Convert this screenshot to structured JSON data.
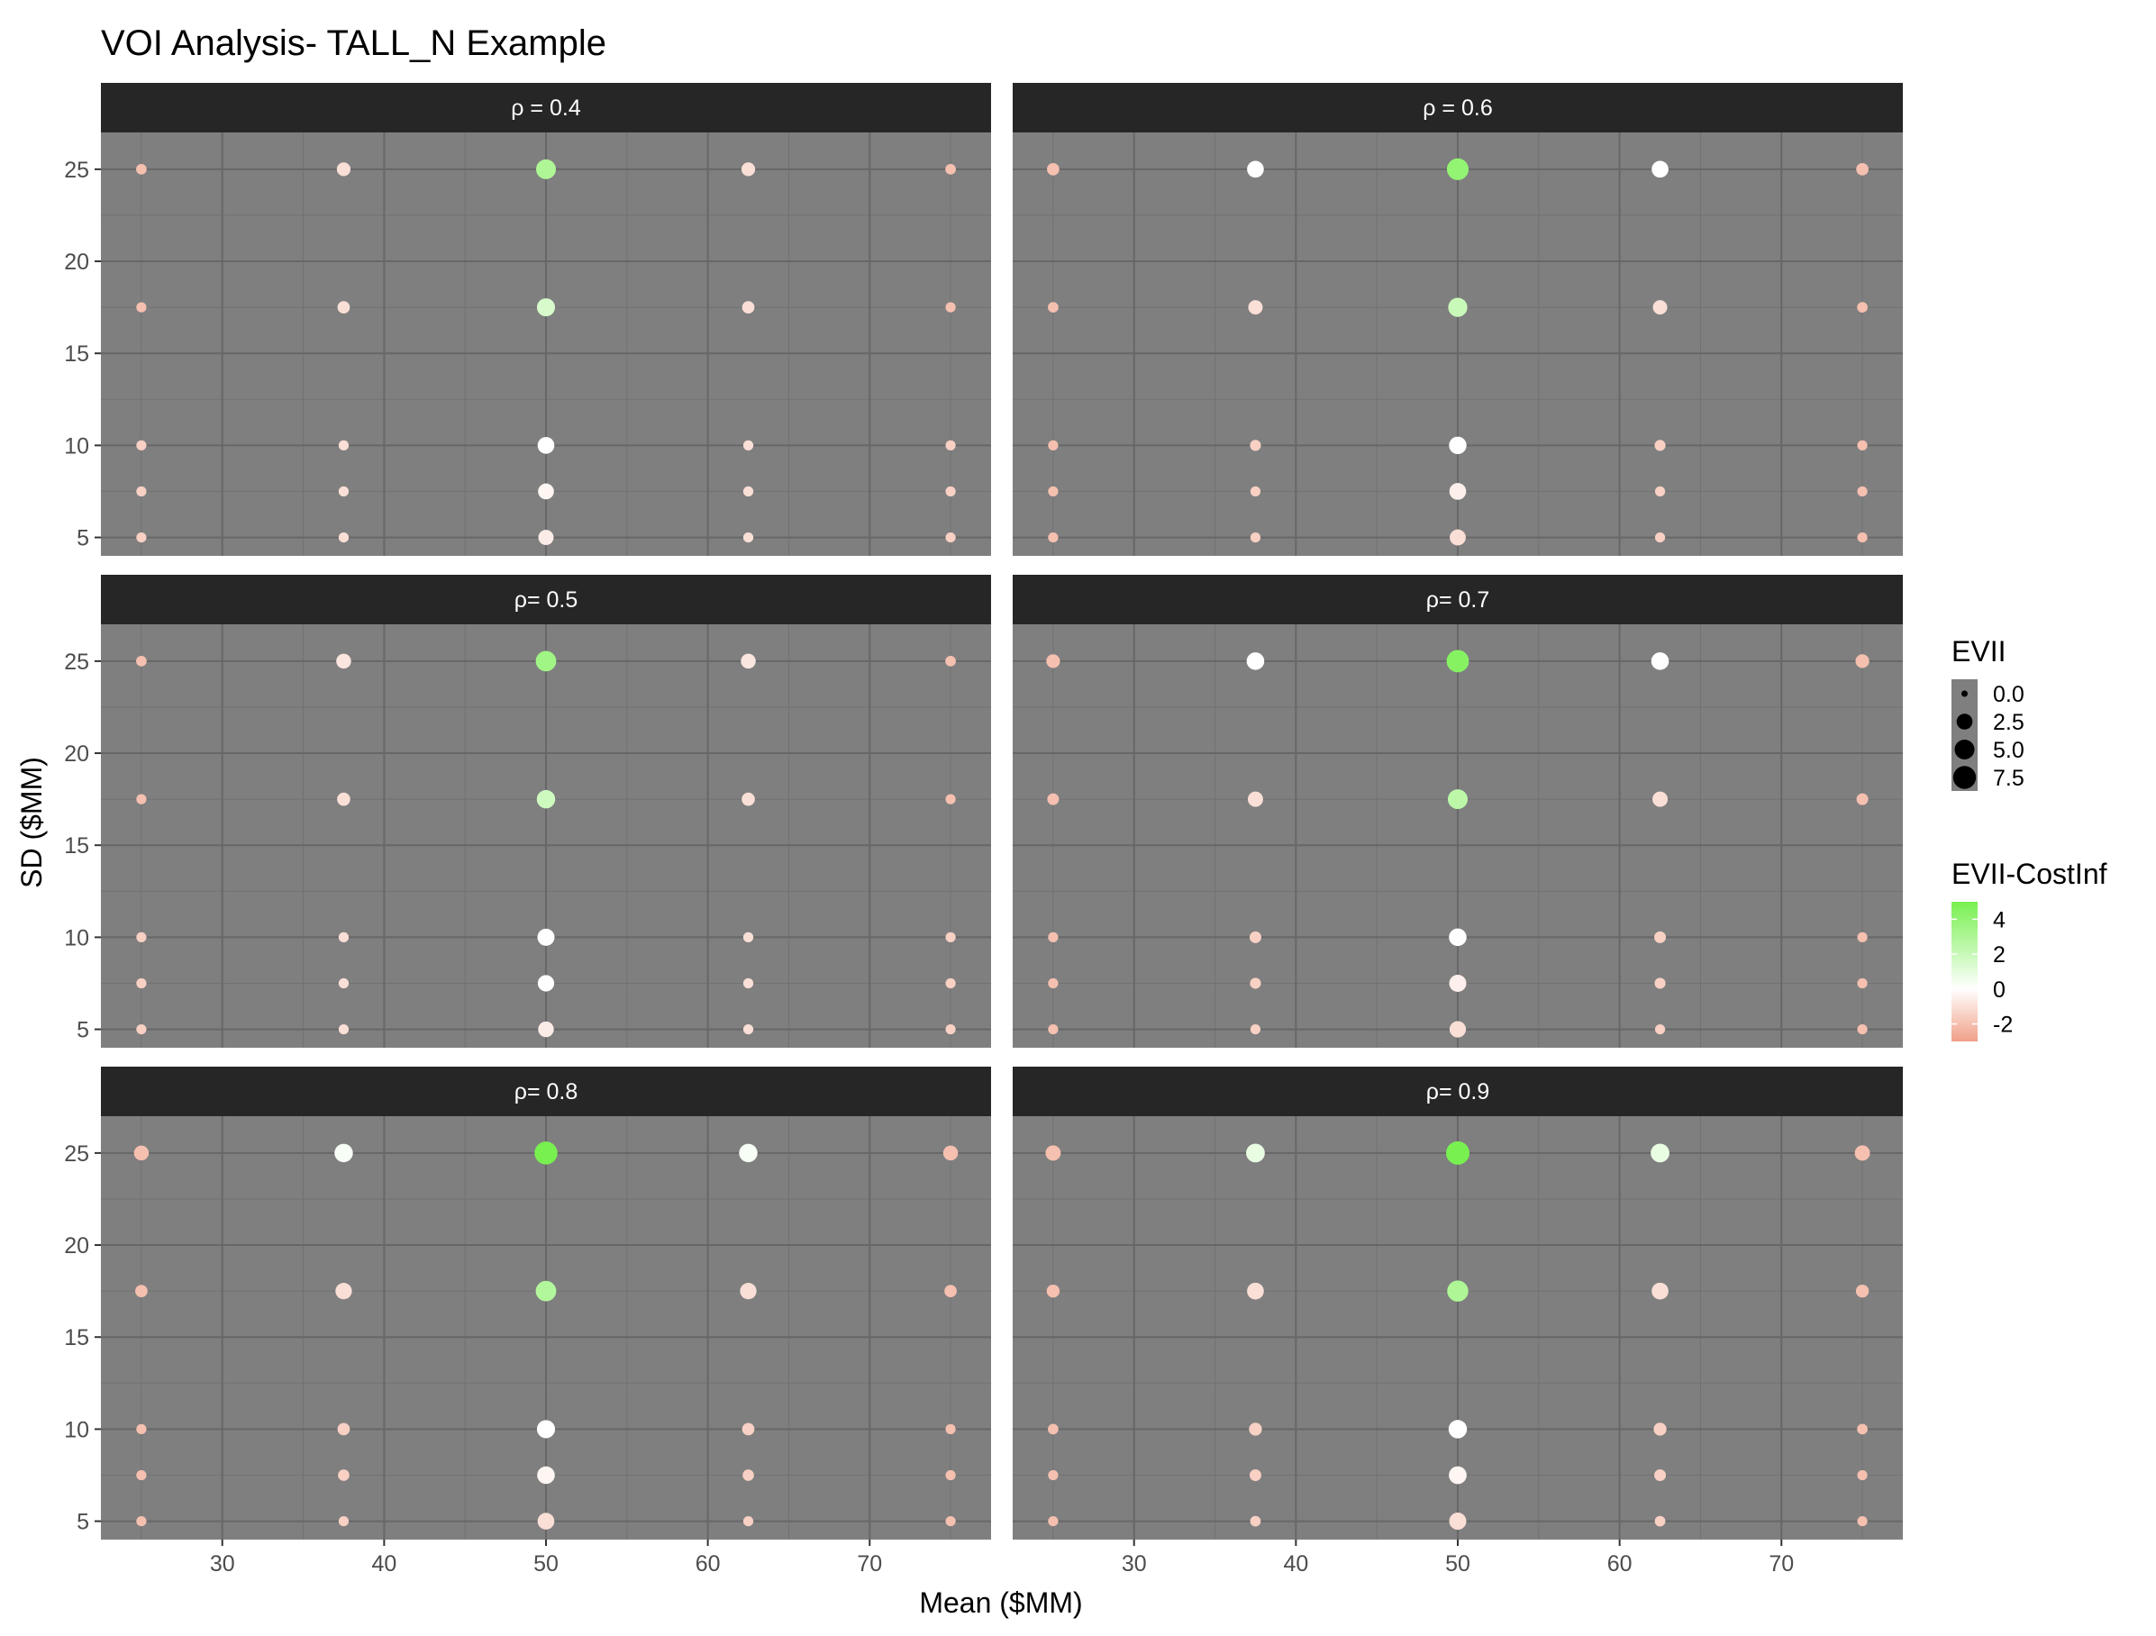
{
  "chart_data": {
    "type": "scatter",
    "title": "VOI Analysis- TALL_N Example",
    "xlabel": "Mean ($MM)",
    "ylabel": "SD ($MM)",
    "xlim": [
      22.5,
      77.5
    ],
    "ylim": [
      4,
      27
    ],
    "x_ticks": [
      30,
      40,
      50,
      60,
      70
    ],
    "x_tick_labels": [
      "30",
      "40",
      "50",
      "60",
      "70"
    ],
    "y_ticks": [
      5,
      10,
      15,
      20,
      25
    ],
    "y_tick_labels": [
      "5",
      "10",
      "15",
      "20",
      "25"
    ],
    "grid": true,
    "facet_layout": {
      "ncol": 2,
      "nrow": 3
    },
    "panel_background": "#7f7f7f",
    "strip_background": "#262626",
    "means": [
      25,
      37.5,
      50,
      62.5,
      75
    ],
    "sds": [
      5,
      7.5,
      10,
      17.5,
      25
    ],
    "color_scale": {
      "low": "#f0a088",
      "mid": "#ffffff",
      "high": "#78f050",
      "limits": [
        -3,
        5
      ]
    },
    "size_scale": {
      "limits": [
        0,
        8
      ]
    },
    "panels": [
      {
        "label": "ρ = 0.4",
        "points": [
          {
            "x": 25,
            "y": 25,
            "evii": 0.5,
            "value": -2
          },
          {
            "x": 37.5,
            "y": 25,
            "evii": 1.5,
            "value": -1
          },
          {
            "x": 50,
            "y": 25,
            "evii": 5.0,
            "value": 3
          },
          {
            "x": 62.5,
            "y": 25,
            "evii": 1.5,
            "value": -1
          },
          {
            "x": 75,
            "y": 25,
            "evii": 0.5,
            "value": -2
          },
          {
            "x": 25,
            "y": 17.5,
            "evii": 0.4,
            "value": -2
          },
          {
            "x": 37.5,
            "y": 17.5,
            "evii": 1.0,
            "value": -1
          },
          {
            "x": 50,
            "y": 17.5,
            "evii": 3.8,
            "value": 1.5
          },
          {
            "x": 62.5,
            "y": 17.5,
            "evii": 1.0,
            "value": -1
          },
          {
            "x": 75,
            "y": 17.5,
            "evii": 0.4,
            "value": -2
          },
          {
            "x": 25,
            "y": 10,
            "evii": 0.4,
            "value": -1.5
          },
          {
            "x": 37.5,
            "y": 10,
            "evii": 0.4,
            "value": -1
          },
          {
            "x": 50,
            "y": 10,
            "evii": 3.0,
            "value": 0
          },
          {
            "x": 62.5,
            "y": 10,
            "evii": 0.4,
            "value": -1
          },
          {
            "x": 75,
            "y": 10,
            "evii": 0.4,
            "value": -1.5
          },
          {
            "x": 25,
            "y": 7.5,
            "evii": 0.4,
            "value": -1.5
          },
          {
            "x": 37.5,
            "y": 7.5,
            "evii": 0.4,
            "value": -1
          },
          {
            "x": 50,
            "y": 7.5,
            "evii": 2.5,
            "value": -0.3
          },
          {
            "x": 62.5,
            "y": 7.5,
            "evii": 0.4,
            "value": -1
          },
          {
            "x": 75,
            "y": 7.5,
            "evii": 0.4,
            "value": -1.5
          },
          {
            "x": 25,
            "y": 5,
            "evii": 0.4,
            "value": -1.5
          },
          {
            "x": 37.5,
            "y": 5,
            "evii": 0.4,
            "value": -1
          },
          {
            "x": 50,
            "y": 5,
            "evii": 2.2,
            "value": -0.6
          },
          {
            "x": 62.5,
            "y": 5,
            "evii": 0.4,
            "value": -1
          },
          {
            "x": 75,
            "y": 5,
            "evii": 0.4,
            "value": -1.5
          }
        ]
      },
      {
        "label": "ρ = 0.6",
        "points": [
          {
            "x": 25,
            "y": 25,
            "evii": 1.0,
            "value": -2
          },
          {
            "x": 37.5,
            "y": 25,
            "evii": 3.0,
            "value": 0
          },
          {
            "x": 50,
            "y": 25,
            "evii": 6.5,
            "value": 4
          },
          {
            "x": 62.5,
            "y": 25,
            "evii": 3.0,
            "value": 0
          },
          {
            "x": 75,
            "y": 25,
            "evii": 1.0,
            "value": -2
          },
          {
            "x": 25,
            "y": 17.5,
            "evii": 0.5,
            "value": -2
          },
          {
            "x": 37.5,
            "y": 17.5,
            "evii": 1.8,
            "value": -1
          },
          {
            "x": 50,
            "y": 17.5,
            "evii": 4.5,
            "value": 2
          },
          {
            "x": 62.5,
            "y": 17.5,
            "evii": 1.8,
            "value": -1
          },
          {
            "x": 75,
            "y": 17.5,
            "evii": 0.5,
            "value": -2
          },
          {
            "x": 25,
            "y": 10,
            "evii": 0.4,
            "value": -2
          },
          {
            "x": 37.5,
            "y": 10,
            "evii": 0.6,
            "value": -1.5
          },
          {
            "x": 50,
            "y": 10,
            "evii": 3.4,
            "value": 0
          },
          {
            "x": 62.5,
            "y": 10,
            "evii": 0.6,
            "value": -1.5
          },
          {
            "x": 75,
            "y": 10,
            "evii": 0.4,
            "value": -2
          },
          {
            "x": 25,
            "y": 7.5,
            "evii": 0.4,
            "value": -2
          },
          {
            "x": 37.5,
            "y": 7.5,
            "evii": 0.4,
            "value": -1.5
          },
          {
            "x": 50,
            "y": 7.5,
            "evii": 3.0,
            "value": -0.5
          },
          {
            "x": 62.5,
            "y": 7.5,
            "evii": 0.4,
            "value": -1.5
          },
          {
            "x": 75,
            "y": 7.5,
            "evii": 0.4,
            "value": -2
          },
          {
            "x": 25,
            "y": 5,
            "evii": 0.4,
            "value": -2
          },
          {
            "x": 37.5,
            "y": 5,
            "evii": 0.4,
            "value": -1.5
          },
          {
            "x": 50,
            "y": 5,
            "evii": 2.6,
            "value": -1
          },
          {
            "x": 62.5,
            "y": 5,
            "evii": 0.4,
            "value": -1.5
          },
          {
            "x": 75,
            "y": 5,
            "evii": 0.4,
            "value": -2
          }
        ]
      },
      {
        "label": "ρ= 0.5",
        "points": [
          {
            "x": 25,
            "y": 25,
            "evii": 0.5,
            "value": -2
          },
          {
            "x": 37.5,
            "y": 25,
            "evii": 2.0,
            "value": -0.8
          },
          {
            "x": 50,
            "y": 25,
            "evii": 5.5,
            "value": 3.5
          },
          {
            "x": 62.5,
            "y": 25,
            "evii": 2.0,
            "value": -0.8
          },
          {
            "x": 75,
            "y": 25,
            "evii": 0.5,
            "value": -2
          },
          {
            "x": 25,
            "y": 17.5,
            "evii": 0.4,
            "value": -2
          },
          {
            "x": 37.5,
            "y": 17.5,
            "evii": 1.3,
            "value": -1
          },
          {
            "x": 50,
            "y": 17.5,
            "evii": 4.0,
            "value": 1.8
          },
          {
            "x": 62.5,
            "y": 17.5,
            "evii": 1.3,
            "value": -1
          },
          {
            "x": 75,
            "y": 17.5,
            "evii": 0.4,
            "value": -2
          },
          {
            "x": 25,
            "y": 10,
            "evii": 0.4,
            "value": -1.5
          },
          {
            "x": 37.5,
            "y": 10,
            "evii": 0.4,
            "value": -1
          },
          {
            "x": 50,
            "y": 10,
            "evii": 3.2,
            "value": 0
          },
          {
            "x": 62.5,
            "y": 10,
            "evii": 0.4,
            "value": -1
          },
          {
            "x": 75,
            "y": 10,
            "evii": 0.4,
            "value": -1.5
          },
          {
            "x": 25,
            "y": 7.5,
            "evii": 0.4,
            "value": -1.5
          },
          {
            "x": 37.5,
            "y": 7.5,
            "evii": 0.4,
            "value": -1
          },
          {
            "x": 50,
            "y": 7.5,
            "evii": 2.8,
            "value": 0
          },
          {
            "x": 62.5,
            "y": 7.5,
            "evii": 0.4,
            "value": -1
          },
          {
            "x": 75,
            "y": 7.5,
            "evii": 0.4,
            "value": -1.5
          },
          {
            "x": 25,
            "y": 5,
            "evii": 0.4,
            "value": -1.5
          },
          {
            "x": 37.5,
            "y": 5,
            "evii": 0.4,
            "value": -1
          },
          {
            "x": 50,
            "y": 5,
            "evii": 2.4,
            "value": -0.6
          },
          {
            "x": 62.5,
            "y": 5,
            "evii": 0.4,
            "value": -1
          },
          {
            "x": 75,
            "y": 5,
            "evii": 0.4,
            "value": -1.5
          }
        ]
      },
      {
        "label": "ρ= 0.7",
        "points": [
          {
            "x": 25,
            "y": 25,
            "evii": 1.5,
            "value": -2
          },
          {
            "x": 37.5,
            "y": 25,
            "evii": 3.5,
            "value": 0
          },
          {
            "x": 50,
            "y": 25,
            "evii": 7.0,
            "value": 4.5
          },
          {
            "x": 62.5,
            "y": 25,
            "evii": 3.5,
            "value": 0
          },
          {
            "x": 75,
            "y": 25,
            "evii": 1.5,
            "value": -2
          },
          {
            "x": 25,
            "y": 17.5,
            "evii": 0.8,
            "value": -2
          },
          {
            "x": 37.5,
            "y": 17.5,
            "evii": 2.2,
            "value": -1
          },
          {
            "x": 50,
            "y": 17.5,
            "evii": 5.0,
            "value": 2.5
          },
          {
            "x": 62.5,
            "y": 17.5,
            "evii": 2.2,
            "value": -1
          },
          {
            "x": 75,
            "y": 17.5,
            "evii": 0.8,
            "value": -2
          },
          {
            "x": 25,
            "y": 10,
            "evii": 0.4,
            "value": -2
          },
          {
            "x": 37.5,
            "y": 10,
            "evii": 0.8,
            "value": -1.5
          },
          {
            "x": 50,
            "y": 10,
            "evii": 3.5,
            "value": 0
          },
          {
            "x": 62.5,
            "y": 10,
            "evii": 0.8,
            "value": -1.5
          },
          {
            "x": 75,
            "y": 10,
            "evii": 0.4,
            "value": -2
          },
          {
            "x": 25,
            "y": 7.5,
            "evii": 0.4,
            "value": -2
          },
          {
            "x": 37.5,
            "y": 7.5,
            "evii": 0.6,
            "value": -1.5
          },
          {
            "x": 50,
            "y": 7.5,
            "evii": 3.2,
            "value": -0.5
          },
          {
            "x": 62.5,
            "y": 7.5,
            "evii": 0.6,
            "value": -1.5
          },
          {
            "x": 75,
            "y": 7.5,
            "evii": 0.4,
            "value": -2
          },
          {
            "x": 25,
            "y": 5,
            "evii": 0.4,
            "value": -2
          },
          {
            "x": 37.5,
            "y": 5,
            "evii": 0.4,
            "value": -1.5
          },
          {
            "x": 50,
            "y": 5,
            "evii": 2.8,
            "value": -1
          },
          {
            "x": 62.5,
            "y": 5,
            "evii": 0.4,
            "value": -1.5
          },
          {
            "x": 75,
            "y": 5,
            "evii": 0.4,
            "value": -2
          }
        ]
      },
      {
        "label": "ρ= 0.8",
        "points": [
          {
            "x": 25,
            "y": 25,
            "evii": 2.0,
            "value": -2
          },
          {
            "x": 37.5,
            "y": 25,
            "evii": 4.0,
            "value": 0.3
          },
          {
            "x": 50,
            "y": 25,
            "evii": 7.5,
            "value": 5
          },
          {
            "x": 62.5,
            "y": 25,
            "evii": 4.0,
            "value": 0.3
          },
          {
            "x": 75,
            "y": 25,
            "evii": 2.0,
            "value": -2
          },
          {
            "x": 25,
            "y": 17.5,
            "evii": 1.0,
            "value": -2
          },
          {
            "x": 37.5,
            "y": 17.5,
            "evii": 2.8,
            "value": -1
          },
          {
            "x": 50,
            "y": 17.5,
            "evii": 5.5,
            "value": 2.8
          },
          {
            "x": 62.5,
            "y": 17.5,
            "evii": 2.8,
            "value": -1
          },
          {
            "x": 75,
            "y": 17.5,
            "evii": 1.0,
            "value": -2
          },
          {
            "x": 25,
            "y": 10,
            "evii": 0.4,
            "value": -2
          },
          {
            "x": 37.5,
            "y": 10,
            "evii": 1.0,
            "value": -1.5
          },
          {
            "x": 50,
            "y": 10,
            "evii": 3.8,
            "value": 0
          },
          {
            "x": 62.5,
            "y": 10,
            "evii": 1.0,
            "value": -1.5
          },
          {
            "x": 75,
            "y": 10,
            "evii": 0.4,
            "value": -2
          },
          {
            "x": 25,
            "y": 7.5,
            "evii": 0.4,
            "value": -2
          },
          {
            "x": 37.5,
            "y": 7.5,
            "evii": 0.7,
            "value": -1.5
          },
          {
            "x": 50,
            "y": 7.5,
            "evii": 3.5,
            "value": -0.3
          },
          {
            "x": 62.5,
            "y": 7.5,
            "evii": 0.7,
            "value": -1.5
          },
          {
            "x": 75,
            "y": 7.5,
            "evii": 0.4,
            "value": -2
          },
          {
            "x": 25,
            "y": 5,
            "evii": 0.4,
            "value": -2
          },
          {
            "x": 37.5,
            "y": 5,
            "evii": 0.4,
            "value": -1.5
          },
          {
            "x": 50,
            "y": 5,
            "evii": 3.0,
            "value": -1
          },
          {
            "x": 62.5,
            "y": 5,
            "evii": 0.4,
            "value": -1.5
          },
          {
            "x": 75,
            "y": 5,
            "evii": 0.4,
            "value": -2
          }
        ]
      },
      {
        "label": "ρ= 0.9",
        "points": [
          {
            "x": 25,
            "y": 25,
            "evii": 2.2,
            "value": -2
          },
          {
            "x": 37.5,
            "y": 25,
            "evii": 4.2,
            "value": 0.8
          },
          {
            "x": 50,
            "y": 25,
            "evii": 8.0,
            "value": 5
          },
          {
            "x": 62.5,
            "y": 25,
            "evii": 4.2,
            "value": 0.8
          },
          {
            "x": 75,
            "y": 25,
            "evii": 2.2,
            "value": -2
          },
          {
            "x": 25,
            "y": 17.5,
            "evii": 1.2,
            "value": -2
          },
          {
            "x": 37.5,
            "y": 17.5,
            "evii": 3.0,
            "value": -1
          },
          {
            "x": 50,
            "y": 17.5,
            "evii": 6.0,
            "value": 3
          },
          {
            "x": 62.5,
            "y": 17.5,
            "evii": 3.0,
            "value": -1
          },
          {
            "x": 75,
            "y": 17.5,
            "evii": 1.2,
            "value": -2
          },
          {
            "x": 25,
            "y": 10,
            "evii": 0.5,
            "value": -2
          },
          {
            "x": 37.5,
            "y": 10,
            "evii": 1.2,
            "value": -1.5
          },
          {
            "x": 50,
            "y": 10,
            "evii": 4.0,
            "value": 0
          },
          {
            "x": 62.5,
            "y": 10,
            "evii": 1.2,
            "value": -1.5
          },
          {
            "x": 75,
            "y": 10,
            "evii": 0.5,
            "value": -2
          },
          {
            "x": 25,
            "y": 7.5,
            "evii": 0.4,
            "value": -2
          },
          {
            "x": 37.5,
            "y": 7.5,
            "evii": 0.8,
            "value": -1.5
          },
          {
            "x": 50,
            "y": 7.5,
            "evii": 3.6,
            "value": -0.3
          },
          {
            "x": 62.5,
            "y": 7.5,
            "evii": 0.8,
            "value": -1.5
          },
          {
            "x": 75,
            "y": 7.5,
            "evii": 0.4,
            "value": -2
          },
          {
            "x": 25,
            "y": 5,
            "evii": 0.4,
            "value": -2
          },
          {
            "x": 37.5,
            "y": 5,
            "evii": 0.5,
            "value": -1.5
          },
          {
            "x": 50,
            "y": 5,
            "evii": 3.2,
            "value": -1
          },
          {
            "x": 62.5,
            "y": 5,
            "evii": 0.5,
            "value": -1.5
          },
          {
            "x": 75,
            "y": 5,
            "evii": 0.4,
            "value": -2
          }
        ]
      }
    ],
    "legend_size": {
      "title": "EVII",
      "labels": [
        "0.0",
        "2.5",
        "5.0",
        "7.5"
      ],
      "values": [
        0,
        2.5,
        5,
        7.5
      ]
    },
    "legend_color": {
      "title": "EVII-CostInf",
      "labels": [
        "4",
        "2",
        "0",
        "-2"
      ],
      "values": [
        4,
        2,
        0,
        -2
      ]
    }
  }
}
